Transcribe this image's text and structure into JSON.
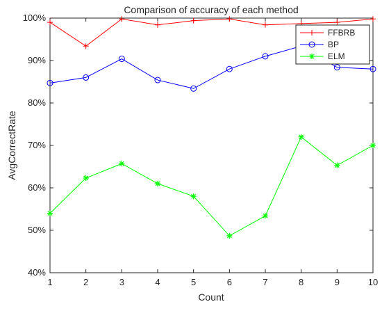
{
  "chart_data": {
    "type": "line",
    "title": "Comparison of accuracy of each method",
    "xlabel": "Count",
    "ylabel": "AvgCorrectRate",
    "x": [
      1,
      2,
      3,
      4,
      5,
      6,
      7,
      8,
      9,
      10
    ],
    "xlim": [
      1,
      10
    ],
    "ylim": [
      0.4,
      1.0
    ],
    "yticks": [
      0.4,
      0.5,
      0.6,
      0.7,
      0.8,
      0.9,
      1.0
    ],
    "ytick_labels": [
      "40%",
      "50%",
      "60%",
      "70%",
      "80%",
      "90%",
      "100%"
    ],
    "xtick_labels": [
      "1",
      "2",
      "3",
      "4",
      "5",
      "6",
      "7",
      "8",
      "9",
      "10"
    ],
    "grid": false,
    "legend_position": "top-right",
    "series": [
      {
        "name": "FFBRB",
        "color": "#ff0000",
        "marker": "plus",
        "values": [
          0.99,
          0.934,
          0.998,
          0.984,
          0.994,
          0.998,
          0.984,
          0.987,
          0.99,
          0.998
        ]
      },
      {
        "name": "BP",
        "color": "#0000ff",
        "marker": "circle",
        "values": [
          0.847,
          0.86,
          0.904,
          0.854,
          0.834,
          0.88,
          0.91,
          0.934,
          0.884,
          0.88
        ]
      },
      {
        "name": "ELM",
        "color": "#00ff00",
        "marker": "asterisk",
        "values": [
          0.54,
          0.623,
          0.657,
          0.61,
          0.58,
          0.487,
          0.534,
          0.72,
          0.653,
          0.7
        ]
      }
    ]
  }
}
